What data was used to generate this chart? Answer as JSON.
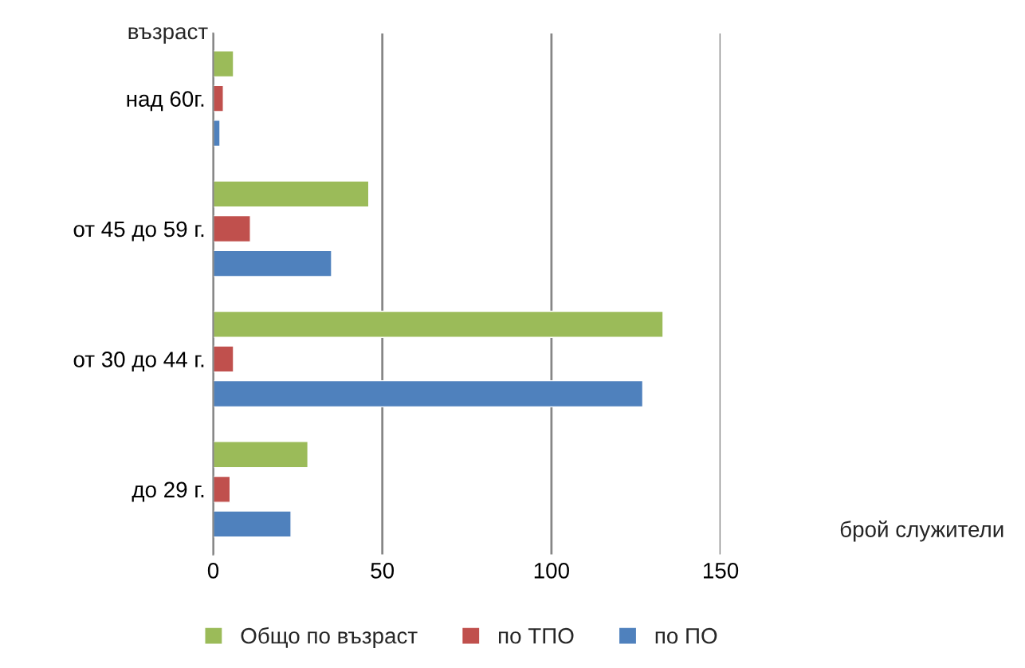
{
  "chart_data": {
    "type": "bar",
    "orientation": "horizontal",
    "ylabel": "възраст",
    "xlabel": "брой служители",
    "categories": [
      "над 60г.",
      "от 45 до 59 г.",
      "от 30 до 44 г.",
      "до 29 г."
    ],
    "series": [
      {
        "name": "Общо по възраст",
        "color": "#9bbb59",
        "values": [
          6,
          46,
          133,
          28
        ]
      },
      {
        "name": "по ТПО",
        "color": "#c0504d",
        "values": [
          3,
          11,
          6,
          5
        ]
      },
      {
        "name": "по ПО",
        "color": "#4f81bd",
        "values": [
          2,
          35,
          127,
          23
        ]
      }
    ],
    "xlim": [
      0,
      150
    ],
    "xticks": [
      0,
      50,
      100,
      150
    ],
    "grid": "x",
    "legend": "bottom"
  }
}
